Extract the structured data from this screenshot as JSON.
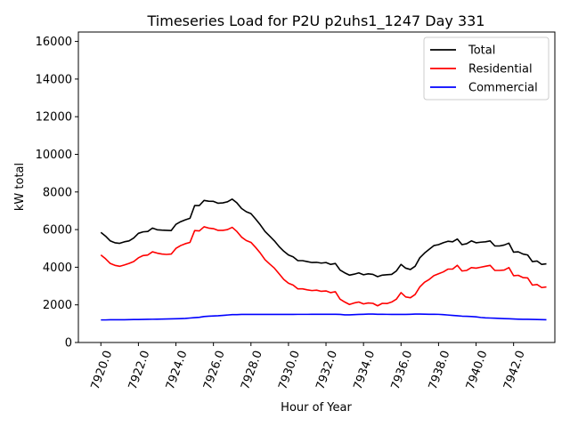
{
  "chart_data": {
    "type": "line",
    "title": "Timeseries Load for P2U p2uhs1_1247  Day 331",
    "xlabel": "Hour of Year",
    "ylabel": "kW total",
    "xlim": [
      7918.8,
      7944.2
    ],
    "ylim": [
      0,
      16500
    ],
    "xticks": [
      7920,
      7922,
      7924,
      7926,
      7928,
      7930,
      7932,
      7934,
      7936,
      7938,
      7940,
      7942
    ],
    "xtick_labels": [
      "7920.0",
      "7922.0",
      "7924.0",
      "7926.0",
      "7928.0",
      "7930.0",
      "7932.0",
      "7934.0",
      "7936.0",
      "7938.0",
      "7940.0",
      "7942.0"
    ],
    "yticks": [
      0,
      2000,
      4000,
      6000,
      8000,
      10000,
      12000,
      14000,
      16000
    ],
    "ytick_labels": [
      "0",
      "2000",
      "4000",
      "6000",
      "8000",
      "10000",
      "12000",
      "14000",
      "16000"
    ],
    "legend_position": "top-right",
    "x": [
      7920.0,
      7920.25,
      7920.5,
      7920.75,
      7921.0,
      7921.25,
      7921.5,
      7921.75,
      7922.0,
      7922.25,
      7922.5,
      7922.75,
      7923.0,
      7923.25,
      7923.5,
      7923.75,
      7924.0,
      7924.25,
      7924.5,
      7924.75,
      7925.0,
      7925.25,
      7925.5,
      7925.75,
      7926.0,
      7926.25,
      7926.5,
      7926.75,
      7927.0,
      7927.25,
      7927.5,
      7927.75,
      7928.0,
      7928.25,
      7928.5,
      7928.75,
      7929.0,
      7929.25,
      7929.5,
      7929.75,
      7930.0,
      7930.25,
      7930.5,
      7930.75,
      7931.0,
      7931.25,
      7931.5,
      7931.75,
      7932.0,
      7932.25,
      7932.5,
      7932.75,
      7933.0,
      7933.25,
      7933.5,
      7933.75,
      7934.0,
      7934.25,
      7934.5,
      7934.75,
      7935.0,
      7935.25,
      7935.5,
      7935.75,
      7936.0,
      7936.25,
      7936.5,
      7936.75,
      7937.0,
      7937.25,
      7937.5,
      7937.75,
      7938.0,
      7938.25,
      7938.5,
      7938.75,
      7939.0,
      7939.25,
      7939.5,
      7939.75,
      7940.0,
      7940.25,
      7940.5,
      7940.75,
      7941.0,
      7941.25,
      7941.5,
      7941.75,
      7942.0,
      7942.25,
      7942.5,
      7942.75,
      7943.0,
      7943.25,
      7943.5,
      7943.75
    ],
    "series": [
      {
        "name": "Total",
        "color": "#000000",
        "values": [
          5850,
          5650,
          5400,
          5300,
          5270,
          5350,
          5400,
          5550,
          5800,
          5880,
          5900,
          6080,
          5990,
          5970,
          5960,
          5950,
          6280,
          6420,
          6520,
          6600,
          7280,
          7280,
          7550,
          7510,
          7500,
          7400,
          7420,
          7480,
          7620,
          7420,
          7120,
          6950,
          6850,
          6560,
          6250,
          5900,
          5650,
          5400,
          5100,
          4850,
          4650,
          4550,
          4350,
          4350,
          4300,
          4250,
          4260,
          4220,
          4250,
          4150,
          4200,
          3850,
          3700,
          3580,
          3630,
          3700,
          3600,
          3650,
          3620,
          3500,
          3580,
          3600,
          3620,
          3800,
          4150,
          3950,
          3880,
          4050,
          4500,
          4750,
          4950,
          5150,
          5200,
          5300,
          5380,
          5350,
          5500,
          5200,
          5250,
          5400,
          5300,
          5330,
          5350,
          5400,
          5130,
          5130,
          5180,
          5280,
          4800,
          4820,
          4700,
          4650,
          4300,
          4330,
          4150,
          4180
        ]
      },
      {
        "name": "Residential",
        "color": "#ff0000",
        "values": [
          4650,
          4450,
          4200,
          4100,
          4050,
          4120,
          4200,
          4300,
          4500,
          4620,
          4650,
          4820,
          4750,
          4700,
          4680,
          4700,
          5000,
          5150,
          5250,
          5320,
          5950,
          5930,
          6150,
          6080,
          6050,
          5960,
          5960,
          6000,
          6120,
          5900,
          5600,
          5420,
          5320,
          5050,
          4750,
          4400,
          4170,
          3950,
          3650,
          3350,
          3150,
          3050,
          2850,
          2850,
          2800,
          2760,
          2780,
          2720,
          2740,
          2650,
          2700,
          2300,
          2150,
          2020,
          2100,
          2150,
          2050,
          2100,
          2080,
          1950,
          2080,
          2070,
          2150,
          2300,
          2650,
          2420,
          2380,
          2550,
          2950,
          3200,
          3350,
          3550,
          3650,
          3750,
          3900,
          3900,
          4100,
          3800,
          3830,
          3980,
          3950,
          4000,
          4050,
          4100,
          3830,
          3830,
          3850,
          3980,
          3550,
          3570,
          3450,
          3430,
          3050,
          3080,
          2920,
          2950
        ]
      },
      {
        "name": "Commercial",
        "color": "#0000ff",
        "values": [
          1200,
          1200,
          1210,
          1210,
          1210,
          1210,
          1215,
          1220,
          1220,
          1225,
          1230,
          1235,
          1240,
          1245,
          1250,
          1255,
          1260,
          1270,
          1280,
          1300,
          1320,
          1340,
          1380,
          1400,
          1410,
          1420,
          1440,
          1460,
          1480,
          1480,
          1490,
          1490,
          1490,
          1490,
          1490,
          1490,
          1490,
          1490,
          1490,
          1490,
          1490,
          1490,
          1495,
          1495,
          1495,
          1500,
          1500,
          1500,
          1500,
          1500,
          1500,
          1490,
          1470,
          1470,
          1480,
          1490,
          1500,
          1510,
          1510,
          1500,
          1500,
          1495,
          1490,
          1490,
          1490,
          1490,
          1500,
          1510,
          1510,
          1505,
          1500,
          1500,
          1495,
          1480,
          1460,
          1440,
          1420,
          1400,
          1390,
          1380,
          1360,
          1330,
          1310,
          1300,
          1290,
          1280,
          1270,
          1260,
          1250,
          1240,
          1230,
          1230,
          1225,
          1220,
          1215,
          1210
        ]
      }
    ]
  }
}
